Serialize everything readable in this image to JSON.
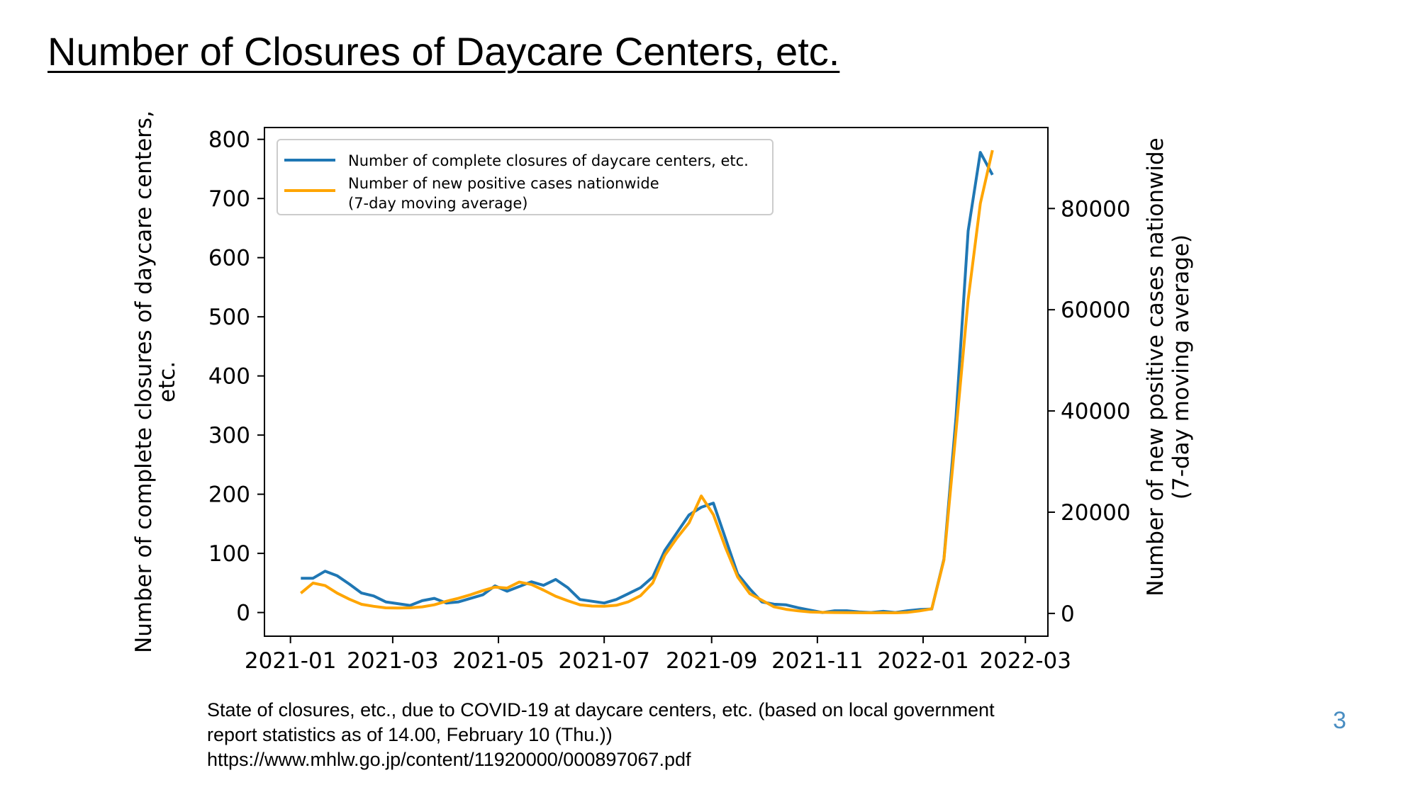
{
  "slide": {
    "title": "Number of Closures of Daycare Centers, etc.",
    "caption": [
      "State of closures, etc., due to COVID-19 at daycare centers, etc. (based on local government",
      "report statistics as of 14.00, February 10 (Thu.))",
      "https://www.mhlw.go.jp/content/11920000/000897067.pdf"
    ],
    "page_number": "3"
  },
  "chart_data": {
    "type": "line",
    "title": "",
    "x_ticks": [
      "2021-01",
      "2021-03",
      "2021-05",
      "2021-07",
      "2021-09",
      "2021-11",
      "2022-01",
      "2022-03"
    ],
    "x_range": [
      "2020-12-17",
      "2022-03-14"
    ],
    "y_left": {
      "label": [
        "Number of complete closures of daycare centers,",
        "etc."
      ],
      "range": [
        -40,
        820
      ],
      "ticks": [
        0,
        100,
        200,
        300,
        400,
        500,
        600,
        700,
        800
      ]
    },
    "y_right": {
      "label": [
        "Number of new positive cases nationwide",
        "(7-day moving average)"
      ],
      "range": [
        -4500,
        96000
      ],
      "ticks": [
        0,
        20000,
        40000,
        60000,
        80000
      ]
    },
    "grid": false,
    "legend_position": "top-left",
    "series": [
      {
        "name": "Number of complete closures of daycare centers, etc.",
        "axis": "left",
        "color": "#1f77b4",
        "x": [
          "2021-01-07",
          "2021-01-14",
          "2021-01-21",
          "2021-01-28",
          "2021-02-04",
          "2021-02-11",
          "2021-02-18",
          "2021-02-25",
          "2021-03-04",
          "2021-03-11",
          "2021-03-18",
          "2021-03-25",
          "2021-04-01",
          "2021-04-08",
          "2021-04-15",
          "2021-04-22",
          "2021-04-29",
          "2021-05-06",
          "2021-05-13",
          "2021-05-20",
          "2021-05-27",
          "2021-06-03",
          "2021-06-10",
          "2021-06-17",
          "2021-06-24",
          "2021-07-01",
          "2021-07-08",
          "2021-07-15",
          "2021-07-22",
          "2021-07-29",
          "2021-08-05",
          "2021-08-12",
          "2021-08-19",
          "2021-08-26",
          "2021-09-02",
          "2021-09-09",
          "2021-09-16",
          "2021-09-23",
          "2021-09-30",
          "2021-10-07",
          "2021-10-14",
          "2021-10-21",
          "2021-10-28",
          "2021-11-04",
          "2021-11-11",
          "2021-11-18",
          "2021-11-25",
          "2021-12-02",
          "2021-12-09",
          "2021-12-16",
          "2021-12-23",
          "2021-12-30",
          "2022-01-06",
          "2022-01-13",
          "2022-01-20",
          "2022-01-27",
          "2022-02-03",
          "2022-02-10"
        ],
        "values": [
          58,
          58,
          70,
          62,
          48,
          33,
          28,
          18,
          15,
          12,
          20,
          24,
          16,
          18,
          24,
          30,
          45,
          36,
          44,
          52,
          46,
          56,
          42,
          22,
          19,
          16,
          22,
          32,
          42,
          60,
          105,
          135,
          165,
          178,
          185,
          125,
          65,
          40,
          18,
          14,
          13,
          8,
          4,
          0,
          3,
          3,
          1,
          0,
          2,
          0,
          3,
          5,
          6,
          90,
          330,
          645,
          778,
          740
        ]
      },
      {
        "name": "Number of new positive cases nationwide (7-day moving average)",
        "axis": "right",
        "color": "#ffa500",
        "x": [
          "2021-01-07",
          "2021-01-14",
          "2021-01-21",
          "2021-01-28",
          "2021-02-04",
          "2021-02-11",
          "2021-02-18",
          "2021-02-25",
          "2021-03-04",
          "2021-03-11",
          "2021-03-18",
          "2021-03-25",
          "2021-04-01",
          "2021-04-08",
          "2021-04-15",
          "2021-04-22",
          "2021-04-29",
          "2021-05-06",
          "2021-05-13",
          "2021-05-20",
          "2021-05-27",
          "2021-06-03",
          "2021-06-10",
          "2021-06-17",
          "2021-06-24",
          "2021-07-01",
          "2021-07-08",
          "2021-07-15",
          "2021-07-22",
          "2021-07-29",
          "2021-08-05",
          "2021-08-12",
          "2021-08-19",
          "2021-08-26",
          "2021-09-02",
          "2021-09-09",
          "2021-09-16",
          "2021-09-23",
          "2021-09-30",
          "2021-10-07",
          "2021-10-14",
          "2021-10-21",
          "2021-10-28",
          "2021-11-04",
          "2021-11-11",
          "2021-11-18",
          "2021-11-25",
          "2021-12-02",
          "2021-12-09",
          "2021-12-16",
          "2021-12-23",
          "2021-12-30",
          "2022-01-06",
          "2022-01-13",
          "2022-01-20",
          "2022-01-27",
          "2022-02-03",
          "2022-02-10"
        ],
        "values": [
          4000,
          6000,
          5500,
          4000,
          2800,
          1800,
          1400,
          1100,
          1050,
          1100,
          1300,
          1700,
          2400,
          3000,
          3700,
          4500,
          5200,
          5000,
          6200,
          5700,
          4600,
          3400,
          2500,
          1700,
          1450,
          1400,
          1600,
          2300,
          3500,
          6000,
          11500,
          14900,
          17900,
          23200,
          19500,
          13000,
          7200,
          3900,
          2600,
          1300,
          800,
          500,
          280,
          200,
          180,
          150,
          140,
          120,
          130,
          120,
          200,
          500,
          900,
          10500,
          36000,
          62000,
          81000,
          91500
        ]
      }
    ]
  }
}
